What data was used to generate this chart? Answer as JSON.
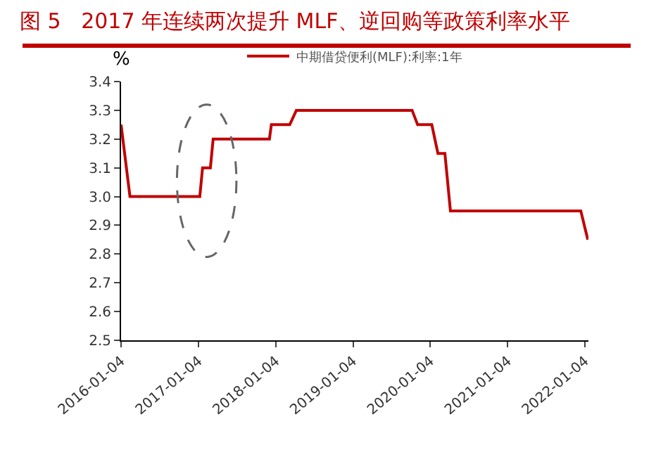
{
  "chart_data": {
    "type": "line",
    "title": "图 5   2017 年连续两次提升 MLF、逆回购等政策利率水平",
    "ylabel": "%",
    "x": [
      "2016-01-04",
      "2016-02-15",
      "2017-01-10",
      "2017-01-23",
      "2017-03-01",
      "2017-03-14",
      "2017-12-05",
      "2017-12-14",
      "2018-03-11",
      "2018-04-11",
      "2019-10-10",
      "2019-11-05",
      "2020-01-11",
      "2020-02-09",
      "2020-03-13",
      "2020-04-08",
      "2021-12-15",
      "2022-01-17"
    ],
    "series": [
      {
        "name": "中期借贷便利(MLF):利率:1年",
        "color": "#c00000",
        "values": [
          3.25,
          3.0,
          3.0,
          3.1,
          3.1,
          3.2,
          3.2,
          3.25,
          3.25,
          3.3,
          3.3,
          3.25,
          3.25,
          3.15,
          3.15,
          2.95,
          2.95,
          2.85
        ]
      }
    ],
    "xlim": [
      "2016-01-04",
      "2022-01-20"
    ],
    "xticks": [
      "2016-01-04",
      "2017-01-04",
      "2018-01-04",
      "2019-01-04",
      "2020-01-04",
      "2021-01-04",
      "2022-01-04"
    ],
    "ylim": [
      2.5,
      3.4
    ],
    "yticks": [
      2.5,
      2.6,
      2.7,
      2.8,
      2.9,
      {
        "value": 3,
        "label": "3.0"
      },
      3.1,
      3.2,
      3.3,
      3.4
    ],
    "grid": false,
    "legend": "top",
    "marker": "none",
    "line_style": "solid"
  }
}
